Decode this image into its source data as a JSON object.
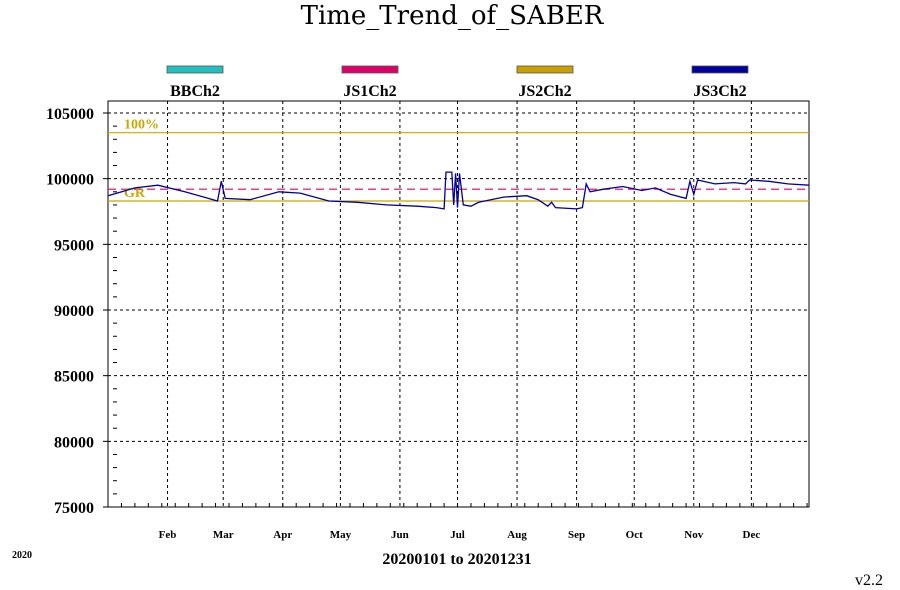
{
  "chart_data": {
    "type": "line",
    "title": "Time_Trend_of_SABER",
    "xlabel": "20200101 to 20201231",
    "ylabel": "",
    "year_label": "2020",
    "version_label": "v2.2",
    "x_range": [
      "2020-01-01",
      "2020-12-31"
    ],
    "ylim": [
      75000,
      105000
    ],
    "y_ticks": [
      "105000",
      "100000",
      "95000",
      "90000",
      "85000",
      "80000",
      "75000"
    ],
    "y_tick_values": [
      105000,
      100000,
      95000,
      90000,
      85000,
      80000,
      75000
    ],
    "x_ticks": [
      {
        "label": "Feb",
        "date": "2020-02-01"
      },
      {
        "label": "Mar",
        "date": "2020-03-01"
      },
      {
        "label": "Apr",
        "date": "2020-04-01"
      },
      {
        "label": "May",
        "date": "2020-05-01"
      },
      {
        "label": "Jun",
        "date": "2020-06-01"
      },
      {
        "label": "Jul",
        "date": "2020-07-01"
      },
      {
        "label": "Aug",
        "date": "2020-08-01"
      },
      {
        "label": "Sep",
        "date": "2020-09-01"
      },
      {
        "label": "Oct",
        "date": "2020-10-01"
      },
      {
        "label": "Nov",
        "date": "2020-11-01"
      },
      {
        "label": "Dec",
        "date": "2020-12-01"
      }
    ],
    "grid": true,
    "legend_position": "top",
    "reference_lines": [
      {
        "label": "100%",
        "value": 103500,
        "color": "#c8a800",
        "style": "solid"
      },
      {
        "label": "",
        "value": 99200,
        "color": "#e0006a",
        "style": "dashed"
      },
      {
        "label": "GR",
        "value": 98300,
        "color": "#c8a800",
        "style": "solid"
      }
    ],
    "series": [
      {
        "name": "BBCh2",
        "color": "#20c0c0",
        "points": []
      },
      {
        "name": "JS1Ch2",
        "color": "#e0006a",
        "points": []
      },
      {
        "name": "JS2Ch2",
        "color": "#c8a000",
        "points": []
      },
      {
        "name": "JS3Ch2",
        "color": "#0000a0",
        "points": [
          [
            "2020-01-01",
            98700
          ],
          [
            "2020-01-15",
            99300
          ],
          [
            "2020-01-27",
            99500
          ],
          [
            "2020-02-10",
            99000
          ],
          [
            "2020-02-20",
            98600
          ],
          [
            "2020-02-27",
            98300
          ],
          [
            "2020-02-29",
            99800
          ],
          [
            "2020-03-02",
            98500
          ],
          [
            "2020-03-15",
            98400
          ],
          [
            "2020-03-30",
            99000
          ],
          [
            "2020-04-10",
            98900
          ],
          [
            "2020-04-25",
            98300
          ],
          [
            "2020-05-10",
            98200
          ],
          [
            "2020-05-25",
            98000
          ],
          [
            "2020-06-10",
            97900
          ],
          [
            "2020-06-20",
            97800
          ],
          [
            "2020-06-24",
            97700
          ],
          [
            "2020-06-25",
            100500
          ],
          [
            "2020-06-28",
            100500
          ],
          [
            "2020-06-29",
            98000
          ],
          [
            "2020-06-30",
            100400
          ],
          [
            "2020-07-01",
            97800
          ],
          [
            "2020-07-02",
            100400
          ],
          [
            "2020-07-04",
            98000
          ],
          [
            "2020-07-08",
            97900
          ],
          [
            "2020-07-12",
            98200
          ],
          [
            "2020-07-25",
            98600
          ],
          [
            "2020-08-06",
            98700
          ],
          [
            "2020-08-12",
            98400
          ],
          [
            "2020-08-17",
            97900
          ],
          [
            "2020-08-19",
            98200
          ],
          [
            "2020-08-21",
            97800
          ],
          [
            "2020-09-01",
            97700
          ],
          [
            "2020-09-04",
            97800
          ],
          [
            "2020-09-06",
            99600
          ],
          [
            "2020-09-08",
            99000
          ],
          [
            "2020-09-15",
            99200
          ],
          [
            "2020-09-25",
            99400
          ],
          [
            "2020-10-05",
            99100
          ],
          [
            "2020-10-12",
            99300
          ],
          [
            "2020-10-20",
            98800
          ],
          [
            "2020-10-28",
            98500
          ],
          [
            "2020-10-30",
            99800
          ],
          [
            "2020-11-01",
            98800
          ],
          [
            "2020-11-03",
            99900
          ],
          [
            "2020-11-12",
            99600
          ],
          [
            "2020-11-22",
            99700
          ],
          [
            "2020-11-28",
            99600
          ],
          [
            "2020-11-30",
            99900
          ],
          [
            "2020-12-10",
            99800
          ],
          [
            "2020-12-20",
            99600
          ],
          [
            "2020-12-31",
            99500
          ]
        ]
      }
    ]
  }
}
